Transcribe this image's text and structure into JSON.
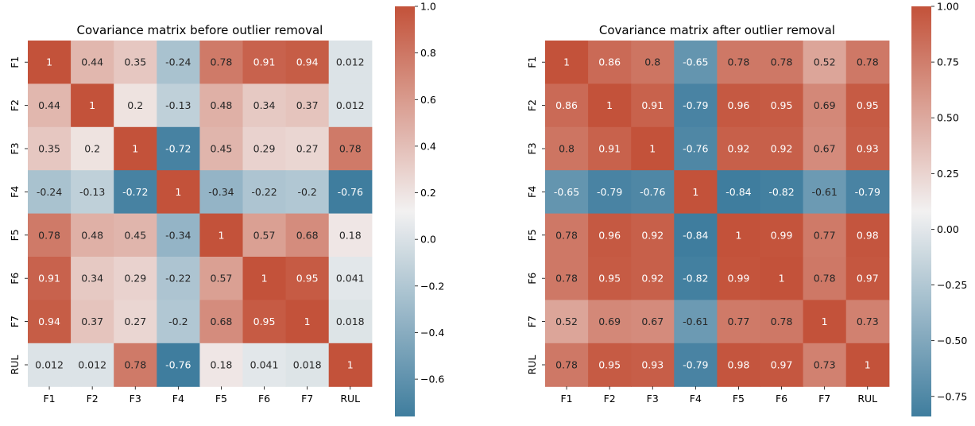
{
  "chart_data": [
    {
      "type": "heatmap",
      "title": "Covariance matrix before outlier removal",
      "xlabel": "",
      "ylabel": "",
      "x_categories": [
        "F1",
        "F2",
        "F3",
        "F4",
        "F5",
        "F6",
        "F7",
        "RUL"
      ],
      "y_categories": [
        "F1",
        "F2",
        "F3",
        "F4",
        "F5",
        "F6",
        "F7",
        "RUL"
      ],
      "cells": [
        [
          "1",
          "0.44",
          "0.35",
          "-0.24",
          "0.78",
          "0.91",
          "0.94",
          "0.012"
        ],
        [
          "0.44",
          "1",
          "0.2",
          "-0.13",
          "0.48",
          "0.34",
          "0.37",
          "0.012"
        ],
        [
          "0.35",
          "0.2",
          "1",
          "-0.72",
          "0.45",
          "0.29",
          "0.27",
          "0.78"
        ],
        [
          "-0.24",
          "-0.13",
          "-0.72",
          "1",
          "-0.34",
          "-0.22",
          "-0.2",
          "-0.76"
        ],
        [
          "0.78",
          "0.48",
          "0.45",
          "-0.34",
          "1",
          "0.57",
          "0.68",
          "0.18"
        ],
        [
          "0.91",
          "0.34",
          "0.29",
          "-0.22",
          "0.57",
          "1",
          "0.95",
          "0.041"
        ],
        [
          "0.94",
          "0.37",
          "0.27",
          "-0.2",
          "0.68",
          "0.95",
          "1",
          "0.018"
        ],
        [
          "0.012",
          "0.012",
          "0.78",
          "-0.76",
          "0.18",
          "0.041",
          "0.018",
          "1"
        ]
      ],
      "colorbar": {
        "range": [
          -0.76,
          1.0
        ],
        "ticks": [
          1.0,
          0.8,
          0.6,
          0.4,
          0.2,
          0.0,
          -0.2,
          -0.4,
          -0.6
        ],
        "tick_labels": [
          "1.0",
          "0.8",
          "0.6",
          "0.4",
          "0.2",
          "0.0",
          "−0.2",
          "−0.4",
          "−0.6"
        ],
        "placement": "right"
      },
      "colors": {
        "low": "#3f7d9e",
        "mid": "#f2f1f1",
        "high": "#c3523a"
      },
      "grid": false
    },
    {
      "type": "heatmap",
      "title": "Covariance matrix after outlier removal",
      "xlabel": "",
      "ylabel": "",
      "x_categories": [
        "F1",
        "F2",
        "F3",
        "F4",
        "F5",
        "F6",
        "F7",
        "RUL"
      ],
      "y_categories": [
        "F1",
        "F2",
        "F3",
        "F4",
        "F5",
        "F6",
        "F7",
        "RUL"
      ],
      "cells": [
        [
          "1",
          "0.86",
          "0.8",
          "-0.65",
          "0.78",
          "0.78",
          "0.52",
          "0.78"
        ],
        [
          "0.86",
          "1",
          "0.91",
          "-0.79",
          "0.96",
          "0.95",
          "0.69",
          "0.95"
        ],
        [
          "0.8",
          "0.91",
          "1",
          "-0.76",
          "0.92",
          "0.92",
          "0.67",
          "0.93"
        ],
        [
          "-0.65",
          "-0.79",
          "-0.76",
          "1",
          "-0.84",
          "-0.82",
          "-0.61",
          "-0.79"
        ],
        [
          "0.78",
          "0.96",
          "0.92",
          "-0.84",
          "1",
          "0.99",
          "0.77",
          "0.98"
        ],
        [
          "0.78",
          "0.95",
          "0.92",
          "-0.82",
          "0.99",
          "1",
          "0.78",
          "0.97"
        ],
        [
          "0.52",
          "0.69",
          "0.67",
          "-0.61",
          "0.77",
          "0.78",
          "1",
          "0.73"
        ],
        [
          "0.78",
          "0.95",
          "0.93",
          "-0.79",
          "0.98",
          "0.97",
          "0.73",
          "1"
        ]
      ],
      "colorbar": {
        "range": [
          -0.84,
          1.0
        ],
        "ticks": [
          1.0,
          0.75,
          0.5,
          0.25,
          0.0,
          -0.25,
          -0.5,
          -0.75
        ],
        "tick_labels": [
          "1.00",
          "0.75",
          "0.50",
          "0.25",
          "0.00",
          "−0.25",
          "−0.50",
          "−0.75"
        ],
        "placement": "right"
      },
      "colors": {
        "low": "#3f7d9e",
        "mid": "#f2f1f1",
        "high": "#c3523a"
      },
      "grid": false
    }
  ]
}
